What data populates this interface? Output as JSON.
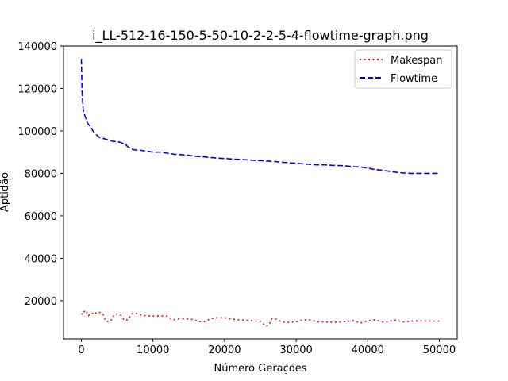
{
  "chart_data": {
    "type": "line",
    "title": "i_LL-512-16-150-5-50-10-2-2-5-4-flowtime-graph.png",
    "xlabel": "Número Gerações",
    "ylabel": "Aptidão",
    "xlim": [
      -2500,
      52500
    ],
    "ylim": [
      2000,
      140000
    ],
    "xticks": [
      0,
      10000,
      20000,
      30000,
      40000,
      50000
    ],
    "yticks": [
      20000,
      40000,
      60000,
      80000,
      100000,
      120000,
      140000
    ],
    "grid": false,
    "legend_position": "top-right",
    "series": [
      {
        "name": "Makespan",
        "color": "#ff0000",
        "style": "dotted",
        "x": [
          0,
          200,
          400,
          600,
          800,
          1000,
          1200,
          1500,
          1800,
          2200,
          2600,
          3000,
          3400,
          3800,
          4200,
          4600,
          5000,
          5500,
          6000,
          6500,
          7000,
          7500,
          8000,
          8500,
          9000,
          10000,
          11000,
          12000,
          12800,
          13500,
          14500,
          15500,
          16500,
          17000,
          17500,
          18000,
          19000,
          20000,
          21000,
          22000,
          23000,
          24000,
          25000,
          25800,
          26200,
          26600,
          27000,
          28000,
          29000,
          30000,
          31000,
          32000,
          33000,
          34000,
          35000,
          36000,
          37000,
          38000,
          39000,
          40000,
          41000,
          42000,
          43000,
          43500,
          44000,
          45000,
          46000,
          47000,
          48000,
          49000,
          50000
        ],
        "y": [
          14000,
          13500,
          15000,
          15500,
          14000,
          13000,
          13800,
          14200,
          13500,
          14800,
          14500,
          13800,
          10500,
          10000,
          11000,
          13500,
          13800,
          13200,
          10800,
          11000,
          13800,
          14200,
          13700,
          13000,
          13000,
          12800,
          12900,
          12700,
          11000,
          11300,
          11500,
          11200,
          10200,
          10000,
          10600,
          11500,
          12000,
          12000,
          11400,
          11000,
          10800,
          10500,
          10300,
          8000,
          8500,
          11500,
          11600,
          10000,
          9800,
          10100,
          11000,
          11000,
          10000,
          10000,
          9900,
          10000,
          10200,
          10600,
          9500,
          10600,
          11000,
          10000,
          10000,
          11000,
          10800,
          10000,
          10400,
          10500,
          10500,
          10400,
          10400
        ]
      },
      {
        "name": "Flowtime",
        "color": "#0000ff",
        "style": "dashed",
        "x": [
          0,
          100,
          250,
          400,
          600,
          800,
          1000,
          1300,
          1600,
          2000,
          2500,
          3000,
          3500,
          4000,
          4500,
          5000,
          6000,
          6500,
          7000,
          7500,
          8000,
          9000,
          10000,
          11000,
          12000,
          13000,
          14000,
          15000,
          16000,
          17000,
          18000,
          19000,
          20000,
          21000,
          22000,
          23000,
          24000,
          25000,
          26000,
          27000,
          28000,
          29000,
          30000,
          31000,
          32000,
          33000,
          34000,
          35000,
          36000,
          37000,
          38000,
          39000,
          40000,
          41000,
          42000,
          43000,
          44000,
          45000,
          46000,
          47000,
          48000,
          49000,
          50000
        ],
        "y": [
          134000,
          118000,
          110000,
          108000,
          106000,
          104000,
          103000,
          102000,
          100000,
          98500,
          97000,
          96500,
          96000,
          95500,
          95000,
          95000,
          94000,
          92500,
          91500,
          91000,
          91000,
          90500,
          90000,
          90000,
          89500,
          89000,
          88800,
          88500,
          88000,
          87800,
          87500,
          87200,
          87000,
          86800,
          86600,
          86400,
          86200,
          86000,
          85800,
          85600,
          85300,
          85000,
          84800,
          84500,
          84200,
          84000,
          84000,
          83800,
          83700,
          83500,
          83200,
          83000,
          82500,
          81800,
          81500,
          81000,
          80500,
          80200,
          80000,
          80000,
          80000,
          80000,
          80000
        ]
      }
    ]
  }
}
